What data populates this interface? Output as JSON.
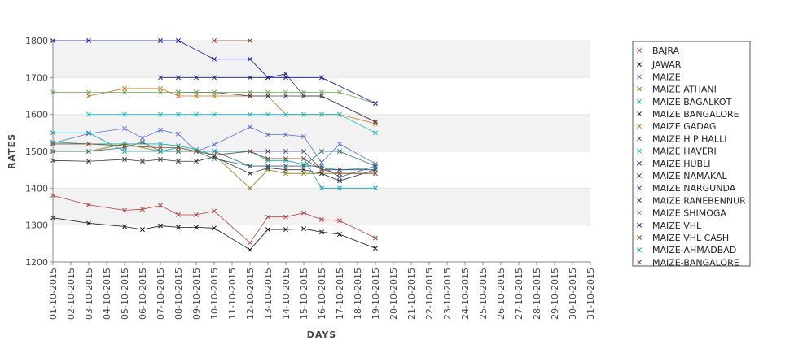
{
  "chart_data": {
    "type": "line",
    "title": "",
    "xlabel": "DAYS",
    "ylabel": "RATES",
    "ylim": [
      1200,
      1800
    ],
    "yticks": [
      1200,
      1300,
      1400,
      1500,
      1600,
      1700,
      1800
    ],
    "grid": true,
    "legend_position": "right",
    "marker": "x",
    "categories": [
      "01-10-2015",
      "02-10-2015",
      "03-10-2015",
      "04-10-2015",
      "05-10-2015",
      "06-10-2015",
      "07-10-2015",
      "08-10-2015",
      "09-10-2015",
      "10-10-2015",
      "11-10-2015",
      "12-10-2015",
      "13-10-2015",
      "14-10-2015",
      "15-10-2015",
      "16-10-2015",
      "17-10-2015",
      "18-10-2015",
      "19-10-2015",
      "20-10-2015",
      "21-10-2015",
      "22-10-2015",
      "23-10-2015",
      "24-10-2015",
      "25-10-2015",
      "26-10-2015",
      "27-10-2015",
      "28-10-2015",
      "29-10-2015",
      "30-10-2015",
      "31-10-2015"
    ],
    "series": [
      {
        "name": "BAJRA",
        "color": "#b04040",
        "x": [
          "01-10-2015",
          "03-10-2015",
          "05-10-2015",
          "06-10-2015",
          "07-10-2015",
          "08-10-2015",
          "09-10-2015",
          "10-10-2015",
          "12-10-2015",
          "13-10-2015",
          "14-10-2015",
          "15-10-2015",
          "16-10-2015",
          "17-10-2015",
          "19-10-2015"
        ],
        "values": [
          1380,
          1355,
          1340,
          1343,
          1353,
          1328,
          1328,
          1338,
          1252,
          1322,
          1322,
          1333,
          1315,
          1312,
          1265
        ]
      },
      {
        "name": "JAWAR",
        "color": "#111111",
        "x": [
          "01-10-2015",
          "03-10-2015",
          "05-10-2015",
          "06-10-2015",
          "07-10-2015",
          "08-10-2015",
          "09-10-2015",
          "10-10-2015",
          "12-10-2015",
          "13-10-2015",
          "14-10-2015",
          "15-10-2015",
          "16-10-2015",
          "17-10-2015",
          "19-10-2015"
        ],
        "values": [
          1320,
          1305,
          1296,
          1288,
          1298,
          1294,
          1294,
          1292,
          1233,
          1288,
          1288,
          1290,
          1281,
          1275,
          1237
        ]
      },
      {
        "name": "MAIZE",
        "color": "#5a6fd8",
        "x": [
          "01-10-2015",
          "03-10-2015",
          "05-10-2015",
          "06-10-2015",
          "07-10-2015",
          "08-10-2015",
          "09-10-2015",
          "10-10-2015",
          "12-10-2015",
          "13-10-2015",
          "14-10-2015",
          "15-10-2015",
          "16-10-2015",
          "17-10-2015",
          "19-10-2015"
        ],
        "values": [
          1522,
          1548,
          1562,
          1536,
          1558,
          1547,
          1500,
          1518,
          1566,
          1545,
          1545,
          1540,
          1470,
          1520,
          1466
        ]
      },
      {
        "name": "MAIZE ATHANI",
        "color": "#8a7a10",
        "x": [
          "01-10-2015",
          "03-10-2015",
          "05-10-2015",
          "07-10-2015",
          "08-10-2015",
          "09-10-2015",
          "10-10-2015",
          "12-10-2015",
          "13-10-2015",
          "14-10-2015",
          "15-10-2015",
          "16-10-2015",
          "17-10-2015",
          "19-10-2015"
        ],
        "values": [
          1500,
          1500,
          1520,
          1500,
          1500,
          1500,
          1490,
          1400,
          1450,
          1440,
          1440,
          1440,
          1440,
          1440
        ]
      },
      {
        "name": "MAIZE BAGALKOT",
        "color": "#10b0a0",
        "x": [
          "01-10-2015",
          "03-10-2015",
          "05-10-2015",
          "07-10-2015",
          "08-10-2015",
          "09-10-2015",
          "10-10-2015",
          "12-10-2015",
          "13-10-2015",
          "14-10-2015",
          "15-10-2015",
          "16-10-2015",
          "17-10-2015",
          "19-10-2015"
        ],
        "values": [
          1525,
          1520,
          1520,
          1520,
          1515,
          1505,
          1490,
          1500,
          1475,
          1475,
          1465,
          1455,
          1450,
          1455
        ]
      },
      {
        "name": "MAIZE BANGALORE",
        "color": "#333333",
        "x": [
          "01-10-2015",
          "03-10-2015",
          "05-10-2015",
          "06-10-2015",
          "07-10-2015",
          "08-10-2015",
          "09-10-2015",
          "10-10-2015",
          "12-10-2015",
          "13-10-2015",
          "14-10-2015",
          "15-10-2015",
          "16-10-2015",
          "17-10-2015",
          "19-10-2015"
        ],
        "values": [
          1475,
          1473,
          1478,
          1473,
          1478,
          1473,
          1473,
          1485,
          1440,
          1455,
          1450,
          1450,
          1440,
          1420,
          1450
        ]
      },
      {
        "name": "MAIZE GADAG",
        "color": "#d0701c",
        "x": [
          "03-10-2015",
          "05-10-2015",
          "07-10-2015",
          "08-10-2015",
          "09-10-2015",
          "10-10-2015",
          "12-10-2015",
          "13-10-2015",
          "14-10-2015",
          "15-10-2015",
          "16-10-2015",
          "17-10-2015",
          "19-10-2015"
        ],
        "values": [
          1650,
          1670,
          1670,
          1650,
          1650,
          1650,
          1650,
          1650,
          1600,
          1600,
          1600,
          1600,
          1575
        ]
      },
      {
        "name": "MAIZE H P HALLI",
        "color": "#2f6f6f",
        "x": [
          "01-10-2015",
          "03-10-2015",
          "05-10-2015",
          "06-10-2015",
          "07-10-2015",
          "08-10-2015",
          "09-10-2015",
          "10-10-2015",
          "12-10-2015",
          "13-10-2015",
          "14-10-2015",
          "15-10-2015",
          "16-10-2015",
          "17-10-2015",
          "19-10-2015"
        ],
        "values": [
          1500,
          1500,
          1510,
          1525,
          1500,
          1500,
          1500,
          1480,
          1460,
          1460,
          1460,
          1460,
          1500,
          1500,
          1460
        ]
      },
      {
        "name": "MAIZE HAVERI",
        "color": "#18c0cc",
        "x": [
          "03-10-2015",
          "05-10-2015",
          "07-10-2015",
          "08-10-2015",
          "09-10-2015",
          "10-10-2015",
          "12-10-2015",
          "13-10-2015",
          "14-10-2015",
          "15-10-2015",
          "16-10-2015",
          "17-10-2015",
          "19-10-2015"
        ],
        "values": [
          1600,
          1600,
          1600,
          1600,
          1600,
          1600,
          1600,
          1600,
          1600,
          1600,
          1600,
          1600,
          1550
        ]
      },
      {
        "name": "MAIZE HUBLI",
        "color": "#20207a",
        "x": [
          "07-10-2015",
          "08-10-2015",
          "09-10-2015",
          "10-10-2015",
          "12-10-2015",
          "13-10-2015",
          "14-10-2015",
          "15-10-2015",
          "16-10-2015",
          "19-10-2015"
        ],
        "values": [
          1700,
          1700,
          1700,
          1700,
          1700,
          1700,
          1710,
          1650,
          1650,
          1580
        ]
      },
      {
        "name": "MAIZE NAMAKAL",
        "color": "#44447a",
        "x": [
          "10-10-2015",
          "12-10-2015",
          "13-10-2015",
          "14-10-2015",
          "15-10-2015",
          "16-10-2015",
          "17-10-2015",
          "19-10-2015"
        ],
        "values": [
          1500,
          1500,
          1500,
          1500,
          1500,
          1450,
          1450,
          1450
        ]
      },
      {
        "name": "MAIZE NARGUNDA",
        "color": "#3a5a8a",
        "x": [
          "10-10-2015",
          "12-10-2015",
          "13-10-2015",
          "14-10-2015",
          "15-10-2015",
          "16-10-2015",
          "17-10-2015",
          "19-10-2015"
        ],
        "values": [
          1500,
          1460,
          1460,
          1460,
          1460,
          1460,
          1430,
          1460
        ]
      },
      {
        "name": "MAIZE RANEBENNUR",
        "color": "#4a3a4a",
        "x": [
          "08-10-2015",
          "09-10-2015",
          "10-10-2015",
          "12-10-2015",
          "13-10-2015",
          "14-10-2015",
          "15-10-2015",
          "16-10-2015",
          "19-10-2015"
        ],
        "values": [
          1660,
          1660,
          1660,
          1650,
          1650,
          1650,
          1650,
          1650,
          1580
        ]
      },
      {
        "name": "MAIZE SHIMOGA",
        "color": "#6aa84f",
        "x": [
          "01-10-2015",
          "03-10-2015",
          "05-10-2015",
          "07-10-2015",
          "08-10-2015",
          "09-10-2015",
          "10-10-2015",
          "12-10-2015",
          "13-10-2015",
          "14-10-2015",
          "15-10-2015",
          "16-10-2015",
          "17-10-2015",
          "19-10-2015"
        ],
        "values": [
          1660,
          1660,
          1660,
          1660,
          1660,
          1660,
          1660,
          1660,
          1660,
          1660,
          1660,
          1660,
          1660,
          1630
        ]
      },
      {
        "name": "MAIZE VHL",
        "color": "#1010a0",
        "x": [
          "01-10-2015",
          "03-10-2015",
          "07-10-2015",
          "08-10-2015",
          "10-10-2015",
          "12-10-2015",
          "13-10-2015",
          "14-10-2015",
          "16-10-2015",
          "19-10-2015"
        ],
        "values": [
          1800,
          1800,
          1800,
          1800,
          1750,
          1750,
          1700,
          1700,
          1700,
          1630
        ]
      },
      {
        "name": "MAIZE VHL CASH",
        "color": "#8a3a20",
        "x": [
          "10-10-2015",
          "12-10-2015"
        ],
        "values": [
          1800,
          1800
        ]
      },
      {
        "name": "MAIZE-AHMADBAD",
        "color": "#10a0b0",
        "x": [
          "01-10-2015",
          "03-10-2015",
          "05-10-2015",
          "07-10-2015",
          "08-10-2015",
          "09-10-2015",
          "10-10-2015",
          "12-10-2015",
          "13-10-2015",
          "14-10-2015",
          "15-10-2015",
          "16-10-2015",
          "17-10-2015",
          "19-10-2015"
        ],
        "values": [
          1550,
          1550,
          1500,
          1500,
          1510,
          1500,
          1500,
          1500,
          1480,
          1480,
          1480,
          1400,
          1400,
          1400
        ]
      },
      {
        "name": "MAIZE-BANGALORE",
        "color": "#8a4a2a",
        "x": [
          "01-10-2015",
          "03-10-2015",
          "05-10-2015",
          "07-10-2015",
          "08-10-2015",
          "09-10-2015",
          "10-10-2015",
          "12-10-2015",
          "13-10-2015",
          "14-10-2015",
          "15-10-2015",
          "16-10-2015",
          "17-10-2015",
          "19-10-2015"
        ],
        "values": [
          1520,
          1520,
          1515,
          1510,
          1510,
          1500,
          1490,
          1500,
          1480,
          1480,
          1480,
          1450,
          1440,
          1440
        ]
      }
    ]
  }
}
